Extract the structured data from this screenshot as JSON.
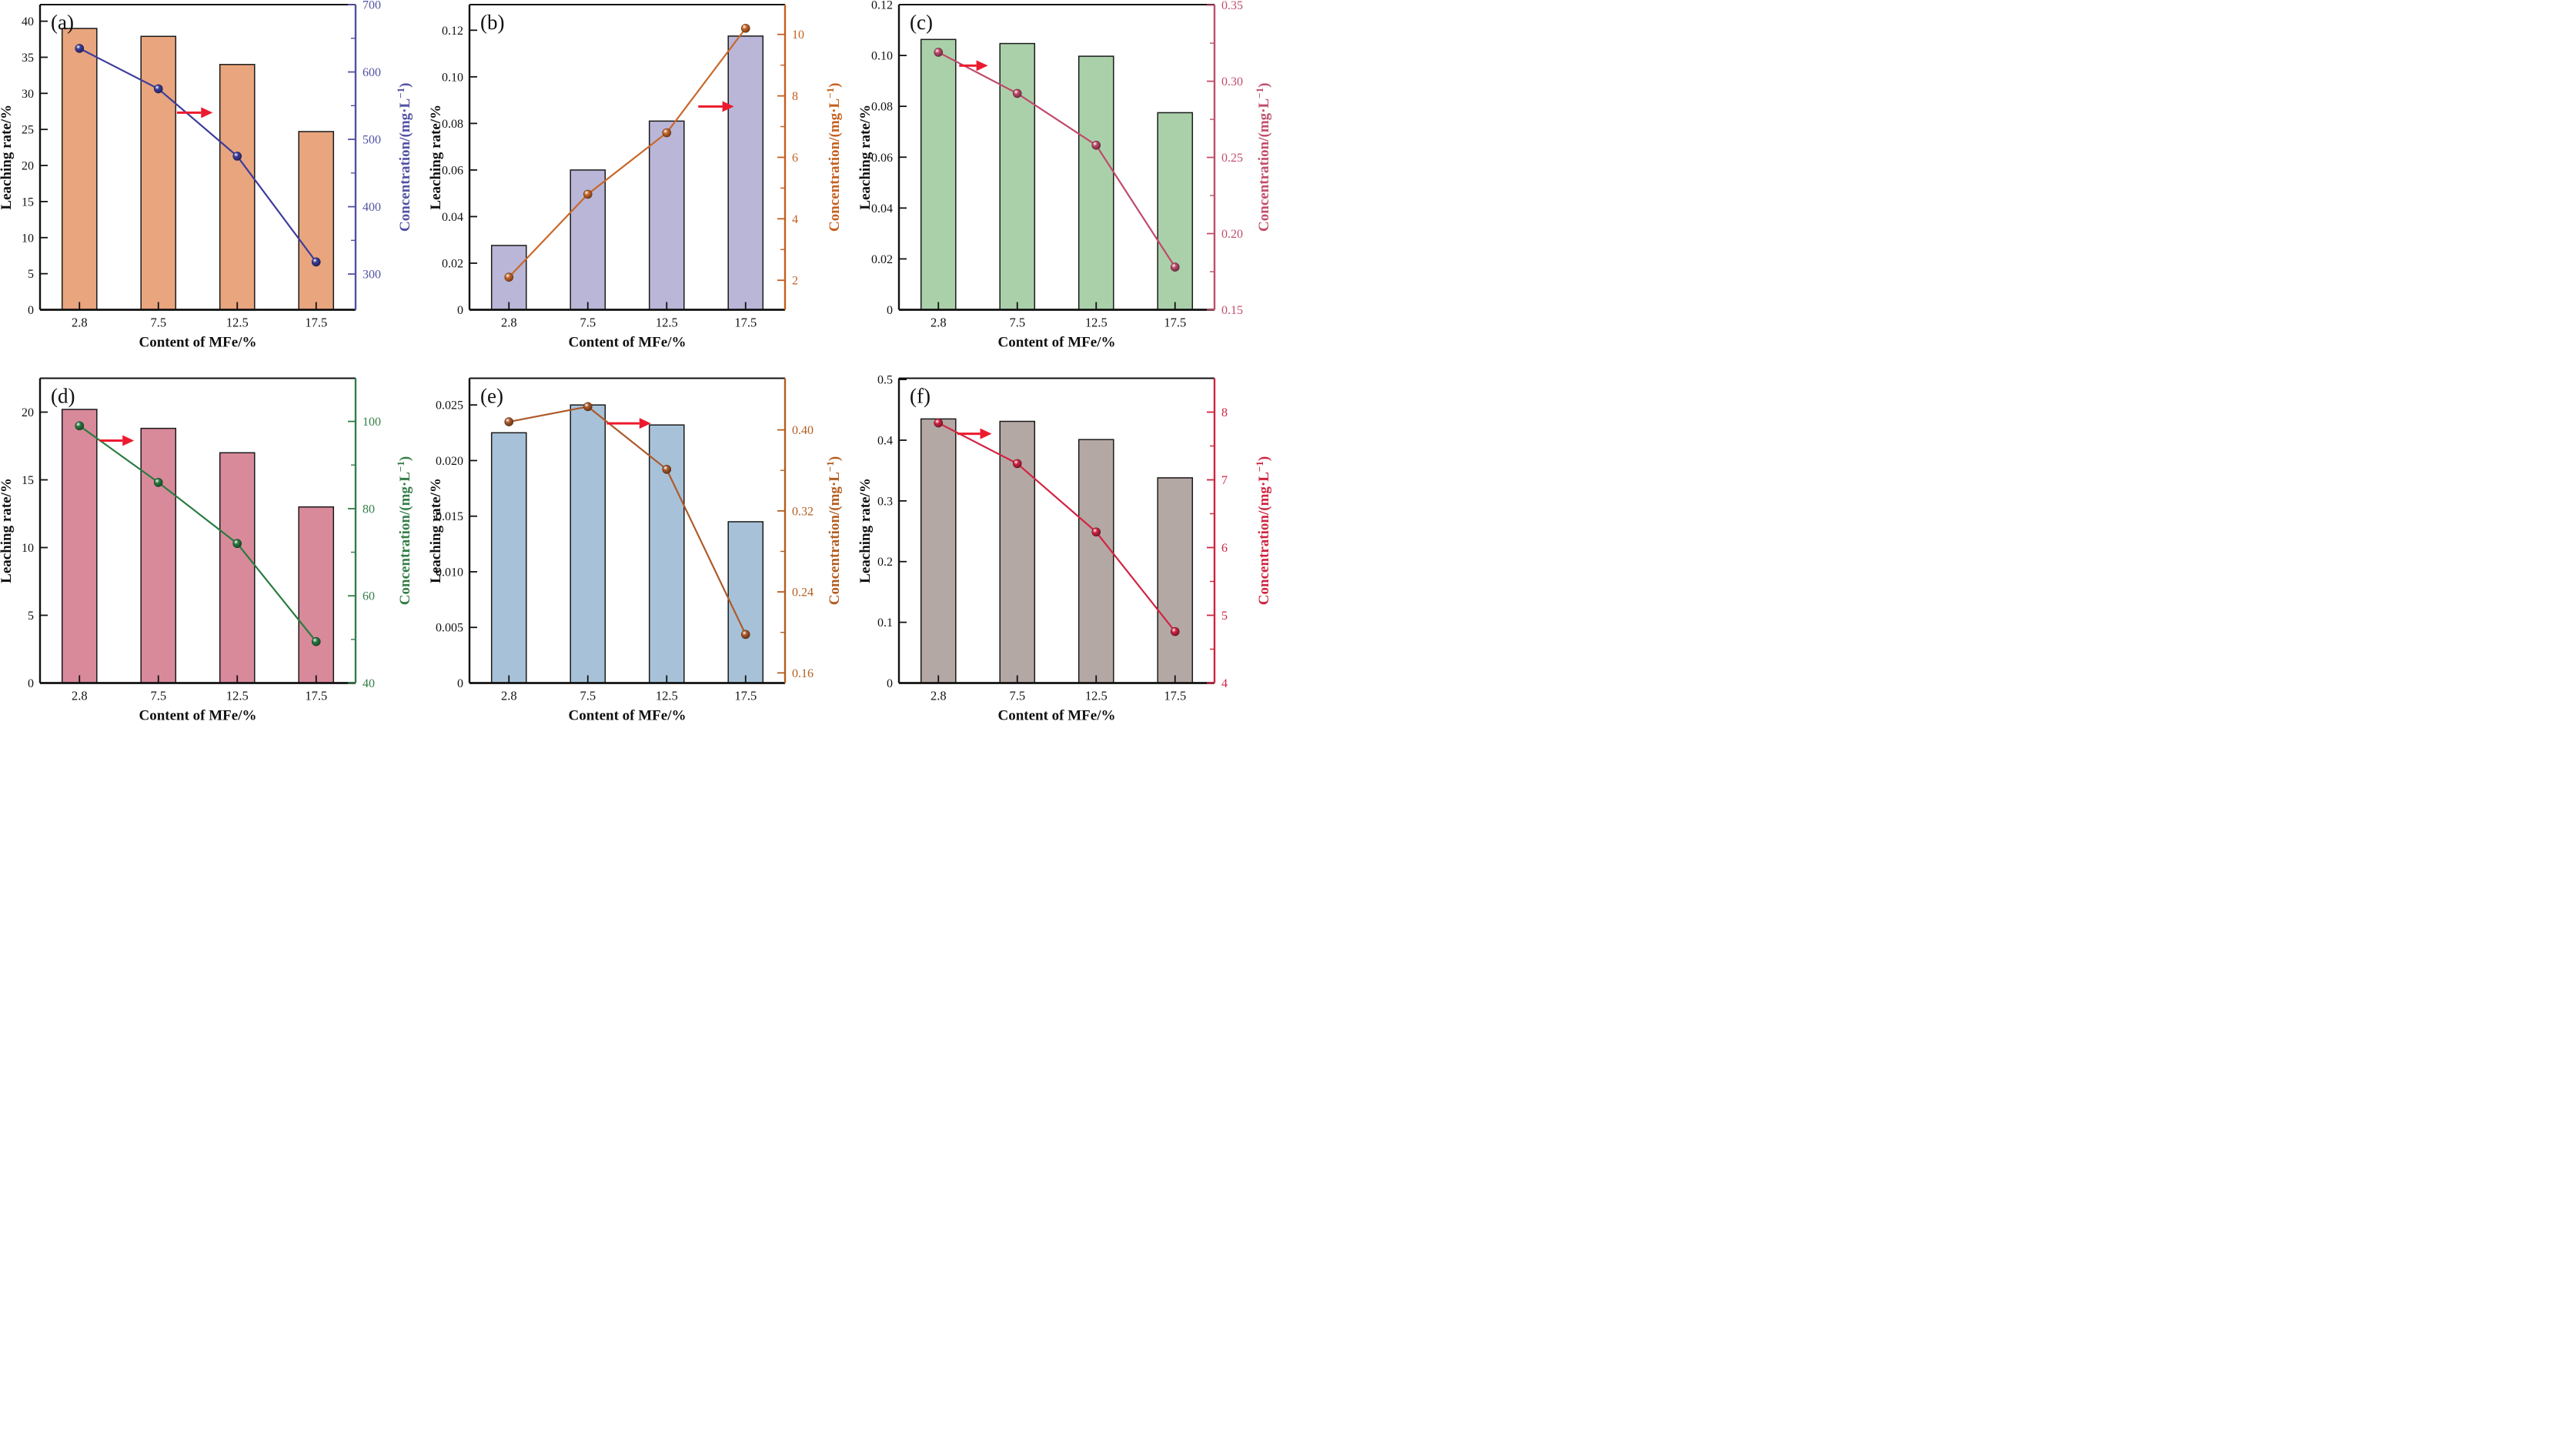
{
  "figure": {
    "x_axis_title": "Content of MFe/%",
    "left_axis_title": "Leaching rate/%",
    "right_axis_title": "Concentration/(mg·L⁻¹)",
    "categories": [
      "2.8",
      "7.5",
      "12.5",
      "17.5"
    ],
    "arrow_color": "#ec1a2e",
    "frame_color": "#111111"
  },
  "chart_data": [
    {
      "type": "bar+line",
      "panel_label": "(a)",
      "categories": [
        "2.8",
        "7.5",
        "12.5",
        "17.5"
      ],
      "xlabel": "Content of MFe/%",
      "bar_series": {
        "name": "Leaching rate",
        "color": "#e8a57e",
        "values": [
          39.0,
          37.9,
          34.0,
          24.7
        ]
      },
      "line_series": {
        "name": "Concentration",
        "color": "#3c3c9c",
        "values": [
          635,
          575,
          475,
          318
        ]
      },
      "left_axis": {
        "title": "Leaching rate/%",
        "tick_labels": [
          "0",
          "5",
          "10",
          "15",
          "20",
          "25",
          "30",
          "35",
          "40"
        ],
        "min": 0,
        "max": 42.3
      },
      "right_axis": {
        "title": "Concentration/(mg·L⁻¹)",
        "tick_labels": [
          "300",
          "400",
          "500",
          "600",
          "700"
        ],
        "min": 247,
        "max": 700,
        "color": "#5151a3"
      },
      "arrow": {
        "x0": 0.434,
        "x1": 0.547,
        "y": 0.354
      }
    },
    {
      "type": "bar+line",
      "panel_label": "(b)",
      "categories": [
        "2.8",
        "7.5",
        "12.5",
        "17.5"
      ],
      "xlabel": "Content of MFe/%",
      "bar_series": {
        "name": "Leaching rate",
        "color": "#b9b6d8",
        "values": [
          0.0276,
          0.06,
          0.081,
          0.1175
        ]
      },
      "line_series": {
        "name": "Concentration",
        "color": "#c8682a",
        "values": [
          2.1,
          4.8,
          6.8,
          10.2
        ]
      },
      "left_axis": {
        "title": "Leaching rate/%",
        "tick_labels": [
          "0",
          "0.02",
          "0.04",
          "0.06",
          "0.08",
          "0.10",
          "0.12"
        ],
        "min": 0,
        "max": 0.131
      },
      "right_axis": {
        "title": "Concentration/(mg·L⁻¹)",
        "tick_labels": [
          "2",
          "4",
          "6",
          "8",
          "10"
        ],
        "min": 1.04,
        "max": 10.97,
        "color": "#c55f1f"
      },
      "arrow": {
        "x0": 0.725,
        "x1": 0.838,
        "y": 0.334
      }
    },
    {
      "type": "bar+line",
      "panel_label": "(c)",
      "categories": [
        "2.8",
        "7.5",
        "12.5",
        "17.5"
      ],
      "xlabel": "Content of MFe/%",
      "bar_series": {
        "name": "Leaching rate",
        "color": "#aad0aa",
        "values": [
          0.1063,
          0.1047,
          0.0997,
          0.0775
        ]
      },
      "line_series": {
        "name": "Concentration",
        "color": "#bf4a6b",
        "values": [
          0.319,
          0.292,
          0.258,
          0.178
        ]
      },
      "left_axis": {
        "title": "Leaching rate/%",
        "tick_labels": [
          "0",
          "0.02",
          "0.04",
          "0.06",
          "0.08",
          "0.10",
          "0.12"
        ],
        "min": 0,
        "max": 0.12
      },
      "right_axis": {
        "title": "Concentration/(mg·L⁻¹)",
        "tick_labels": [
          "0.15",
          "0.20",
          "0.25",
          "0.30",
          "0.35"
        ],
        "min": 0.15,
        "max": 0.3503,
        "color": "#c04e6b"
      },
      "arrow": {
        "x0": 0.191,
        "x1": 0.282,
        "y": 0.2
      }
    },
    {
      "type": "bar+line",
      "panel_label": "(d)",
      "categories": [
        "2.8",
        "7.5",
        "12.5",
        "17.5"
      ],
      "xlabel": "Content of MFe/%",
      "bar_series": {
        "name": "Leaching rate",
        "color": "#d8899a",
        "values": [
          20.2,
          18.8,
          17.0,
          13.0
        ]
      },
      "line_series": {
        "name": "Concentration",
        "color": "#2a7c41",
        "values": [
          99,
          86,
          72,
          49.5
        ]
      },
      "left_axis": {
        "title": "Leaching rate/%",
        "tick_labels": [
          "0",
          "5",
          "10",
          "15",
          "20"
        ],
        "min": 0,
        "max": 22.5
      },
      "right_axis": {
        "title": "Concentration/(mg·L⁻¹)",
        "tick_labels": [
          "40",
          "60",
          "80",
          "100"
        ],
        "min": 40,
        "max": 109.9,
        "color": "#337d47"
      },
      "arrow": {
        "x0": 0.189,
        "x1": 0.298,
        "y": 0.2045
      }
    },
    {
      "type": "bar+line",
      "panel_label": "(e)",
      "categories": [
        "2.8",
        "7.5",
        "12.5",
        "17.5"
      ],
      "xlabel": "Content of MFe/%",
      "bar_series": {
        "name": "Leaching rate",
        "color": "#a7c2d8",
        "values": [
          0.0225,
          0.025,
          0.0232,
          0.0145
        ]
      },
      "line_series": {
        "name": "Concentration",
        "color": "#ad5a2b",
        "values": [
          0.408,
          0.423,
          0.361,
          0.198
        ]
      },
      "left_axis": {
        "title": "Leaching rate/%",
        "tick_labels": [
          "0",
          "0.005",
          "0.010",
          "0.015",
          "0.020",
          "0.025"
        ],
        "min": 0,
        "max": 0.0274
      },
      "right_axis": {
        "title": "Concentration/(mg·L⁻¹)",
        "tick_labels": [
          "0.16",
          "0.24",
          "0.32",
          "0.40"
        ],
        "min": 0.15,
        "max": 0.451,
        "color": "#b35d20"
      },
      "arrow": {
        "x0": 0.435,
        "x1": 0.575,
        "y": 0.148
      }
    },
    {
      "type": "bar+line",
      "panel_label": "(f)",
      "categories": [
        "2.8",
        "7.5",
        "12.5",
        "17.5"
      ],
      "xlabel": "Content of MFe/%",
      "bar_series": {
        "name": "Leaching rate",
        "color": "#b4a8a4",
        "values": [
          0.435,
          0.431,
          0.401,
          0.338
        ]
      },
      "line_series": {
        "name": "Concentration",
        "color": "#d22443",
        "values": [
          7.84,
          7.24,
          6.23,
          4.76
        ]
      },
      "left_axis": {
        "title": "Leaching rate/%",
        "tick_labels": [
          "0",
          "0.1",
          "0.2",
          "0.3",
          "0.4",
          "0.5"
        ],
        "min": 0,
        "max": 0.502
      },
      "right_axis": {
        "title": "Concentration/(mg·L⁻¹)",
        "tick_labels": [
          "4",
          "5",
          "6",
          "7",
          "8"
        ],
        "min": 4,
        "max": 8.5,
        "color": "#cf2440"
      },
      "arrow": {
        "x0": 0.185,
        "x1": 0.294,
        "y": 0.182
      }
    }
  ]
}
